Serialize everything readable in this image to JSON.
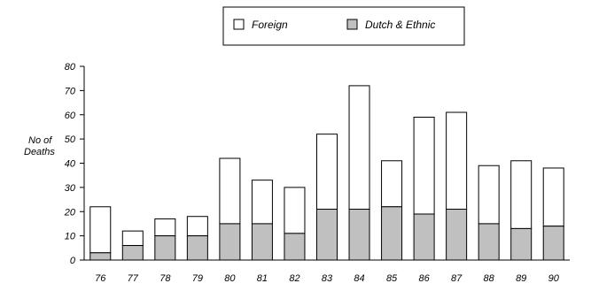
{
  "chart_data": {
    "type": "bar",
    "stacked": true,
    "title": "",
    "xlabel": "",
    "ylabel": "No of Deaths",
    "ylabel_lines": [
      "No of",
      "Deaths"
    ],
    "categories": [
      "76",
      "77",
      "78",
      "79",
      "80",
      "81",
      "82",
      "83",
      "84",
      "85",
      "86",
      "87",
      "88",
      "89",
      "90"
    ],
    "ylim": [
      0,
      80
    ],
    "yticks": [
      0,
      10,
      20,
      30,
      40,
      50,
      60,
      70,
      80
    ],
    "grid": false,
    "legend_position": "top-center",
    "series": [
      {
        "name": "Dutch & Ethnic",
        "color": "#c0c0c0",
        "values": [
          3,
          6,
          10,
          10,
          15,
          15,
          11,
          21,
          21,
          22,
          19,
          21,
          15,
          13,
          14
        ]
      },
      {
        "name": "Foreign",
        "color": "#ffffff",
        "values": [
          19,
          6,
          7,
          8,
          27,
          18,
          19,
          31,
          51,
          19,
          40,
          40,
          24,
          28,
          24
        ]
      }
    ]
  },
  "legend": {
    "items": [
      {
        "label": "Foreign",
        "color": "#ffffff"
      },
      {
        "label": "Dutch & Ethnic",
        "color": "#c0c0c0"
      }
    ]
  }
}
